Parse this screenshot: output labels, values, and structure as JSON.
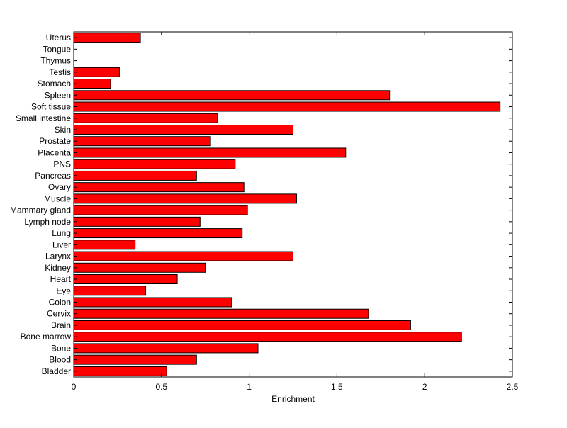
{
  "chart_data": {
    "type": "bar",
    "orientation": "horizontal",
    "xlabel": "Enrichment",
    "xlim": [
      0,
      2.5
    ],
    "xticks": [
      0,
      0.5,
      1,
      1.5,
      2,
      2.5
    ],
    "xtick_labels": [
      "0",
      "0.5",
      "1",
      "1.5",
      "2",
      "2.5"
    ],
    "grid": false,
    "bar_color": "#ff0000",
    "bar_edge_color": "#000000",
    "categories": [
      "Bladder",
      "Blood",
      "Bone",
      "Bone marrow",
      "Brain",
      "Cervix",
      "Colon",
      "Eye",
      "Heart",
      "Kidney",
      "Larynx",
      "Liver",
      "Lung",
      "Lymph node",
      "Mammary gland",
      "Muscle",
      "Ovary",
      "Pancreas",
      "PNS",
      "Placenta",
      "Prostate",
      "Skin",
      "Small intestine",
      "Soft tissue",
      "Spleen",
      "Stomach",
      "Testis",
      "Thymus",
      "Tongue",
      "Uterus"
    ],
    "values": [
      0.53,
      0.7,
      1.05,
      2.21,
      1.92,
      1.68,
      0.9,
      0.41,
      0.59,
      0.75,
      1.25,
      0.35,
      0.96,
      0.72,
      0.99,
      1.27,
      0.97,
      0.7,
      0.92,
      1.55,
      0.78,
      1.25,
      0.82,
      2.43,
      1.8,
      0.21,
      0.26,
      0.0,
      0.0,
      0.38
    ]
  }
}
